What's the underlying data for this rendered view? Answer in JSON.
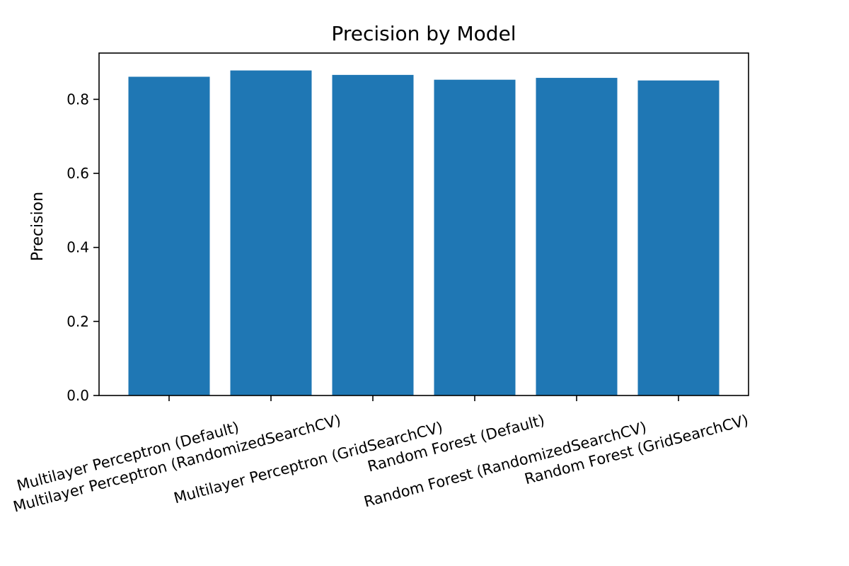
{
  "chart_data": {
    "type": "bar",
    "title": "Precision by Model",
    "xlabel": "",
    "ylabel": "Precision",
    "ylim": [
      0,
      0.925
    ],
    "yticks": [
      0.0,
      0.2,
      0.4,
      0.6,
      0.8
    ],
    "ytick_labels": [
      "0.0",
      "0.2",
      "0.4",
      "0.6",
      "0.8"
    ],
    "categories": [
      "Multilayer Perceptron (Default)",
      "Multilayer Perceptron (RandomizedSearchCV)",
      "Multilayer Perceptron (GridSearchCV)",
      "Random Forest (Default)",
      "Random Forest (RandomizedSearchCV)",
      "Random Forest (GridSearchCV)"
    ],
    "values": [
      0.861,
      0.878,
      0.866,
      0.853,
      0.858,
      0.851
    ],
    "bar_color": "#1f77b4",
    "grid": false,
    "legend": "none",
    "xtick_rotation_deg": -15
  }
}
